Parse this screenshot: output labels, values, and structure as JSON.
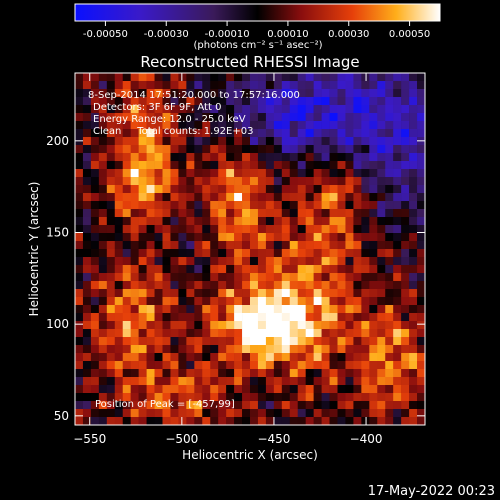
{
  "colorbar": {
    "ticks": [
      "-0.00050",
      "-0.00030",
      "-0.00010",
      "0.00010",
      "0.00030",
      "0.00050"
    ],
    "unit_label": "(photons cm⁻² s⁻¹ asec⁻²)"
  },
  "chart_data": {
    "type": "heatmap",
    "title": "Reconstructed RHESSI Image",
    "xlabel": "Heliocentric X (arcsec)",
    "ylabel": "Heliocentric Y (arcsec)",
    "xlim": [
      -558,
      -368
    ],
    "ylim": [
      45,
      237
    ],
    "xticks": [
      -550,
      -500,
      -450,
      -400
    ],
    "yticks": [
      50,
      100,
      150,
      200
    ],
    "colorbar_range": [
      -0.0005,
      0.0005
    ],
    "annotations": [
      "8-Sep-2014 17:51:20.000 to 17:57:16.000",
      "Detectors: 3F 6F 9F, Att 0",
      "Energy Range: 12.0 - 25.0 keV",
      "Clean     Total counts: 1.92E+03"
    ],
    "peak_label": "Position of Peak = [-457,99]",
    "peak": [
      -457,
      99
    ],
    "sources": [
      {
        "x": -457,
        "y": 99,
        "sx": 18,
        "sy": 14,
        "amp": 1.0
      },
      {
        "x": -520,
        "y": 175,
        "sx": 12,
        "sy": 40,
        "amp": 0.75
      },
      {
        "x": -470,
        "y": 170,
        "sx": 12,
        "sy": 22,
        "amp": 0.6
      },
      {
        "x": -415,
        "y": 175,
        "sx": 14,
        "sy": 20,
        "amp": 0.55
      },
      {
        "x": -430,
        "y": 120,
        "sx": 20,
        "sy": 35,
        "amp": 0.5
      },
      {
        "x": -385,
        "y": 80,
        "sx": 14,
        "sy": 20,
        "amp": 0.55
      },
      {
        "x": -530,
        "y": 100,
        "sx": 14,
        "sy": 25,
        "amp": 0.45
      },
      {
        "x": -500,
        "y": 60,
        "sx": 18,
        "sy": 12,
        "amp": 0.45
      }
    ],
    "negative_regions": [
      {
        "x": -395,
        "y": 205,
        "sx": 35,
        "sy": 30,
        "amp": 0.7
      },
      {
        "x": -445,
        "y": 215,
        "sx": 25,
        "sy": 14,
        "amp": 0.5
      },
      {
        "x": -520,
        "y": 145,
        "sx": 14,
        "sy": 14,
        "amp": 0.5
      }
    ],
    "grid": false
  },
  "footer": {
    "date": "17-May-2022 00:23"
  }
}
